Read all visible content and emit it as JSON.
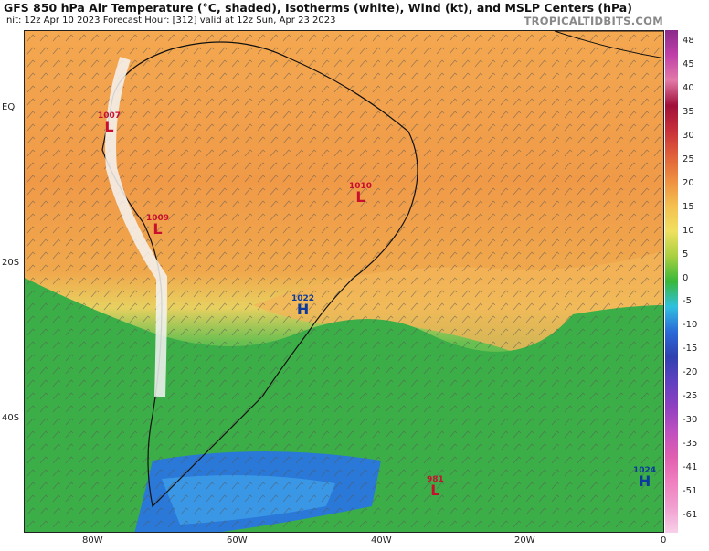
{
  "header": {
    "title": "GFS 850 hPa Air Temperature (°C, shaded), Isotherms (white), Wind (kt), and MSLP Centers (hPa)",
    "subtitle": "Init: 12z Apr 10 2023   Forecast Hour: [312]   valid at 12z Sun, Apr 23 2023",
    "brand": "TROPICALTIDBITS.COM"
  },
  "axes": {
    "lat_labels": [
      "EQ",
      "20S",
      "40S"
    ],
    "lon_labels": [
      "80W",
      "60W",
      "40W",
      "20W",
      "0"
    ]
  },
  "colorbar": {
    "labels": [
      "48",
      "45",
      "40",
      "35",
      "30",
      "25",
      "20",
      "15",
      "10",
      "5",
      "0",
      "-5",
      "-10",
      "-15",
      "-20",
      "-25",
      "-30",
      "-35",
      "-41",
      "-51",
      "-61"
    ],
    "colors": [
      "#8a2b8a",
      "#c040a8",
      "#e27aa8",
      "#a0103a",
      "#c8303a",
      "#e0603a",
      "#ee9040",
      "#f4c050",
      "#f0e060",
      "#a8d040",
      "#38b838",
      "#30c0e0",
      "#2a6ad8",
      "#3040b0",
      "#6040c0",
      "#9040c0",
      "#c050c0",
      "#e060b0",
      "#f080c0",
      "#f0a0d0",
      "#f8d0e8"
    ]
  },
  "pressure_centers": [
    {
      "label": "L",
      "value": "1007",
      "kind": "low"
    },
    {
      "label": "L",
      "value": "1010",
      "kind": "low"
    },
    {
      "label": "L",
      "value": "1009",
      "kind": "low"
    },
    {
      "label": "H",
      "value": "1022",
      "kind": "high"
    },
    {
      "label": "L",
      "value": "981",
      "kind": "low"
    },
    {
      "label": "H",
      "value": "1024",
      "kind": "high"
    }
  ],
  "map_colors": {
    "warm": "#f09a48",
    "hot": "#ec8638",
    "mild": "#f4c060",
    "cool": "#3cae48",
    "cold": "#2a78d8",
    "land_outline": "#111111",
    "andes": "#f4f4f4"
  }
}
